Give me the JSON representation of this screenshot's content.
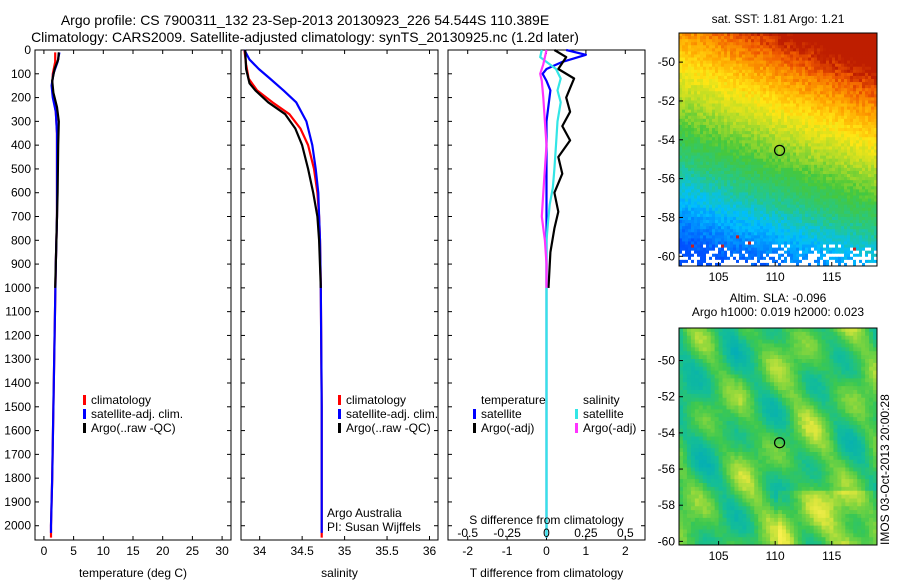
{
  "header": {
    "line1": "Argo profile: CS 7900311_132 23-Sep-2013 20130923_226 54.544S 110.389E",
    "line2": "Climatology: CARS2009. Satellite-adjusted climatology: synTS_20130925.nc (1.2d later)"
  },
  "colors": {
    "climatology": "#ff0000",
    "satellite_adj": "#0000ff",
    "argo": "#000000",
    "satellite_cyan": "#33e6e6",
    "argo_magenta": "#ff33ff"
  },
  "chart_data": [
    {
      "id": "temperature",
      "type": "line",
      "xlabel": "temperature (deg C)",
      "ylabel": "",
      "xlim": [
        -1.5,
        31.5
      ],
      "ylim": [
        2060,
        0
      ],
      "xticks": [
        0,
        5,
        10,
        15,
        20,
        25,
        30
      ],
      "yticks": [
        0,
        100,
        200,
        300,
        400,
        500,
        600,
        700,
        800,
        900,
        1000,
        1100,
        1200,
        1300,
        1400,
        1500,
        1600,
        1700,
        1800,
        1900,
        2000
      ],
      "legend": [
        "climatology",
        "satellite-adj. clim.",
        "Argo(..raw -QC)"
      ],
      "series": [
        {
          "name": "climatology",
          "color": "#ff0000",
          "points": [
            [
              1.9,
              10
            ],
            [
              1.9,
              50
            ],
            [
              1.5,
              100
            ],
            [
              1.4,
              150
            ],
            [
              1.6,
              200
            ],
            [
              2.0,
              260
            ],
            [
              2.2,
              350
            ],
            [
              2.2,
              500
            ],
            [
              2.2,
              700
            ],
            [
              2.0,
              900
            ],
            [
              1.8,
              1200
            ],
            [
              1.6,
              1500
            ],
            [
              1.4,
              1800
            ],
            [
              1.2,
              2000
            ],
            [
              1.2,
              2050
            ]
          ]
        },
        {
          "name": "satellite-adj. clim.",
          "color": "#0000ff",
          "points": [
            [
              2.6,
              10
            ],
            [
              2.3,
              50
            ],
            [
              1.6,
              100
            ],
            [
              1.3,
              150
            ],
            [
              1.5,
              200
            ],
            [
              2.0,
              260
            ],
            [
              2.2,
              350
            ],
            [
              2.2,
              500
            ],
            [
              2.2,
              700
            ],
            [
              2.0,
              900
            ],
            [
              1.8,
              1200
            ],
            [
              1.6,
              1500
            ],
            [
              1.4,
              1800
            ],
            [
              1.2,
              2000
            ],
            [
              1.2,
              2030
            ]
          ]
        },
        {
          "name": "Argo(..raw -QC)",
          "color": "#000000",
          "points": [
            [
              2.5,
              10
            ],
            [
              2.4,
              40
            ],
            [
              1.8,
              80
            ],
            [
              1.4,
              130
            ],
            [
              1.6,
              180
            ],
            [
              2.2,
              240
            ],
            [
              2.5,
              300
            ],
            [
              2.4,
              400
            ],
            [
              2.3,
              600
            ],
            [
              2.1,
              800
            ],
            [
              1.9,
              1000
            ]
          ]
        }
      ]
    },
    {
      "id": "salinity",
      "type": "line",
      "xlabel": "salinity",
      "ylabel": "",
      "xlim": [
        33.78,
        36.1
      ],
      "ylim": [
        2060,
        0
      ],
      "xticks": [
        34,
        34.5,
        35,
        35.5,
        36
      ],
      "legend": [
        "climatology",
        "satellite-adj. clim.",
        "Argo(..raw -QC)"
      ],
      "series": [
        {
          "name": "climatology",
          "color": "#ff0000",
          "points": [
            [
              33.82,
              0
            ],
            [
              33.84,
              60
            ],
            [
              33.87,
              120
            ],
            [
              33.97,
              170
            ],
            [
              34.15,
              220
            ],
            [
              34.35,
              270
            ],
            [
              34.48,
              330
            ],
            [
              34.57,
              400
            ],
            [
              34.64,
              500
            ],
            [
              34.68,
              600
            ],
            [
              34.7,
              700
            ],
            [
              34.71,
              800
            ],
            [
              34.72,
              1000
            ],
            [
              34.73,
              1500
            ],
            [
              34.73,
              2050
            ]
          ]
        },
        {
          "name": "satellite-adj. clim.",
          "color": "#0000ff",
          "points": [
            [
              33.82,
              0
            ],
            [
              33.88,
              40
            ],
            [
              33.99,
              80
            ],
            [
              34.12,
              120
            ],
            [
              34.28,
              170
            ],
            [
              34.43,
              220
            ],
            [
              34.55,
              300
            ],
            [
              34.62,
              400
            ],
            [
              34.66,
              500
            ],
            [
              34.69,
              600
            ],
            [
              34.7,
              700
            ],
            [
              34.71,
              800
            ],
            [
              34.72,
              1000
            ],
            [
              34.73,
              1500
            ],
            [
              34.73,
              2030
            ]
          ]
        },
        {
          "name": "Argo(..raw -QC)",
          "color": "#000000",
          "points": [
            [
              33.83,
              0
            ],
            [
              33.84,
              80
            ],
            [
              33.88,
              140
            ],
            [
              33.95,
              170
            ],
            [
              34.1,
              220
            ],
            [
              34.3,
              270
            ],
            [
              34.42,
              330
            ],
            [
              34.5,
              400
            ],
            [
              34.57,
              500
            ],
            [
              34.63,
              600
            ],
            [
              34.68,
              700
            ],
            [
              34.7,
              800
            ],
            [
              34.72,
              1000
            ]
          ]
        }
      ],
      "annotations": [
        "Argo Australia",
        "PI: Susan Wijffels"
      ]
    },
    {
      "id": "differences",
      "type": "line",
      "xlabel": "T difference from climatology",
      "x2label": "S difference from climatology",
      "xlim": [
        -2.5,
        2.5
      ],
      "x2lim": [
        -0.625,
        0.625
      ],
      "ylim": [
        2060,
        0
      ],
      "xticks": [
        -2,
        -1,
        0,
        1,
        2
      ],
      "x2ticks": [
        -0.5,
        -0.25,
        0,
        0.25,
        0.5
      ],
      "x2ticklabels": [
        "-0.5",
        "-0.25",
        "0",
        "0.25",
        "0.5"
      ],
      "legend_groups": [
        {
          "title": "temperature",
          "items": [
            "satellite",
            "Argo(-adj)"
          ]
        },
        {
          "title": "salinity",
          "items": [
            "satellite",
            "Argo(-adj)"
          ]
        }
      ],
      "series": [
        {
          "name": "temperature satellite",
          "axis": "T",
          "color": "#0000ff",
          "points": [
            [
              0.5,
              0
            ],
            [
              1.0,
              20
            ],
            [
              0.4,
              50
            ],
            [
              0.0,
              80
            ],
            [
              -0.1,
              100
            ],
            [
              0.0,
              130
            ],
            [
              0.1,
              170
            ],
            [
              0.0,
              300
            ],
            [
              0.0,
              600
            ],
            [
              0.0,
              2050
            ]
          ]
        },
        {
          "name": "temperature Argo(-adj)",
          "axis": "T",
          "color": "#000000",
          "points": [
            [
              0.2,
              0
            ],
            [
              0.5,
              30
            ],
            [
              0.3,
              80
            ],
            [
              0.7,
              120
            ],
            [
              0.6,
              160
            ],
            [
              0.5,
              200
            ],
            [
              0.6,
              260
            ],
            [
              0.4,
              320
            ],
            [
              0.6,
              380
            ],
            [
              0.3,
              450
            ],
            [
              0.4,
              520
            ],
            [
              0.2,
              600
            ],
            [
              0.3,
              680
            ],
            [
              0.2,
              750
            ],
            [
              0.1,
              850
            ],
            [
              0.05,
              1000
            ]
          ]
        },
        {
          "name": "salinity satellite",
          "axis": "S",
          "color": "#33e6e6",
          "points": [
            [
              -0.03,
              0
            ],
            [
              -0.04,
              30
            ],
            [
              0.0,
              50
            ],
            [
              0.06,
              80
            ],
            [
              0.09,
              120
            ],
            [
              0.07,
              170
            ],
            [
              0.09,
              220
            ],
            [
              0.07,
              300
            ],
            [
              0.06,
              400
            ],
            [
              0.05,
              500
            ],
            [
              0.04,
              580
            ],
            [
              0.02,
              650
            ],
            [
              0.01,
              720
            ],
            [
              0.0,
              800
            ],
            [
              0.0,
              2050
            ]
          ]
        },
        {
          "name": "salinity Argo(-adj)",
          "axis": "S",
          "color": "#ff33ff",
          "points": [
            [
              0.0,
              0
            ],
            [
              -0.02,
              60
            ],
            [
              -0.04,
              100
            ],
            [
              -0.03,
              130
            ],
            [
              -0.02,
              200
            ],
            [
              -0.01,
              300
            ],
            [
              0.0,
              400
            ],
            [
              -0.01,
              500
            ],
            [
              -0.02,
              600
            ],
            [
              -0.03,
              700
            ],
            [
              -0.02,
              750
            ],
            [
              -0.01,
              800
            ],
            [
              0.0,
              900
            ],
            [
              0.0,
              1000
            ]
          ]
        }
      ]
    },
    {
      "id": "sst_map",
      "type": "heatmap",
      "title": "sat. SST: 1.81  Argo: 1.21",
      "xlim": [
        101.5,
        119
      ],
      "ylim": [
        -60.5,
        -48.5
      ],
      "xticks": [
        105,
        110,
        115
      ],
      "yticks": [
        -50,
        -52,
        -54,
        -56,
        -58,
        -60
      ],
      "marker": [
        110.389,
        -54.544
      ]
    },
    {
      "id": "sla_map",
      "type": "heatmap",
      "title": "Altim. SLA: -0.096",
      "subtitle": "Argo h1000: 0.019 h2000: 0.023",
      "xlim": [
        101.5,
        119
      ],
      "ylim": [
        -60.2,
        -48.2
      ],
      "xticks": [
        105,
        110,
        115
      ],
      "yticks": [
        -50,
        -52,
        -54,
        -56,
        -58,
        -60
      ],
      "marker": [
        110.389,
        -54.544
      ]
    }
  ],
  "side_label": "IMOS 03-Oct-2013 20:00:28"
}
